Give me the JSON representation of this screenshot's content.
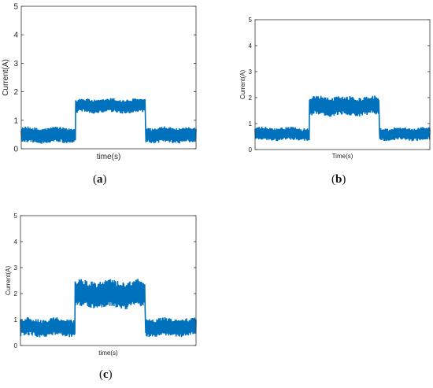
{
  "figure": {
    "captions": [
      {
        "open": "(",
        "letter": "a",
        "close": ")"
      },
      {
        "open": "(",
        "letter": "b",
        "close": ")"
      },
      {
        "open": "(",
        "letter": "c",
        "close": ")"
      }
    ]
  },
  "chart_data": [
    {
      "type": "line",
      "panel": "a",
      "xlabel": "time(s)",
      "ylabel": "Current(A)",
      "ylim": [
        0,
        5
      ],
      "yticks": [
        "0",
        "1",
        "2",
        "3",
        "4",
        "5"
      ],
      "grid": false,
      "color": "#0072BD",
      "segments": [
        {
          "x_start": 0.0,
          "x_end": 0.31,
          "low": 0.2,
          "high": 0.75
        },
        {
          "x_start": 0.31,
          "x_end": 0.71,
          "low": 1.25,
          "high": 1.75
        },
        {
          "x_start": 0.71,
          "x_end": 1.0,
          "low": 0.2,
          "high": 0.75
        }
      ]
    },
    {
      "type": "line",
      "panel": "b",
      "xlabel": "Time(s)",
      "ylabel": "Current(A)",
      "ylim": [
        0,
        5
      ],
      "yticks": [
        "0",
        "1",
        "2",
        "3",
        "4",
        "5"
      ],
      "grid": false,
      "color": "#0072BD",
      "segments": [
        {
          "x_start": 0.0,
          "x_end": 0.31,
          "low": 0.35,
          "high": 0.85
        },
        {
          "x_start": 0.31,
          "x_end": 0.71,
          "low": 1.3,
          "high": 2.05
        },
        {
          "x_start": 0.71,
          "x_end": 1.0,
          "low": 0.35,
          "high": 0.85
        }
      ]
    },
    {
      "type": "line",
      "panel": "c",
      "xlabel": "time(s)",
      "ylabel": "Current(A)",
      "ylim": [
        0,
        5
      ],
      "yticks": [
        "0",
        "1",
        "2",
        "3",
        "4",
        "5"
      ],
      "grid": false,
      "color": "#0072BD",
      "segments": [
        {
          "x_start": 0.0,
          "x_end": 0.31,
          "low": 0.35,
          "high": 1.05
        },
        {
          "x_start": 0.31,
          "x_end": 0.71,
          "low": 1.45,
          "high": 2.5
        },
        {
          "x_start": 0.71,
          "x_end": 1.0,
          "low": 0.35,
          "high": 1.05
        }
      ]
    }
  ]
}
